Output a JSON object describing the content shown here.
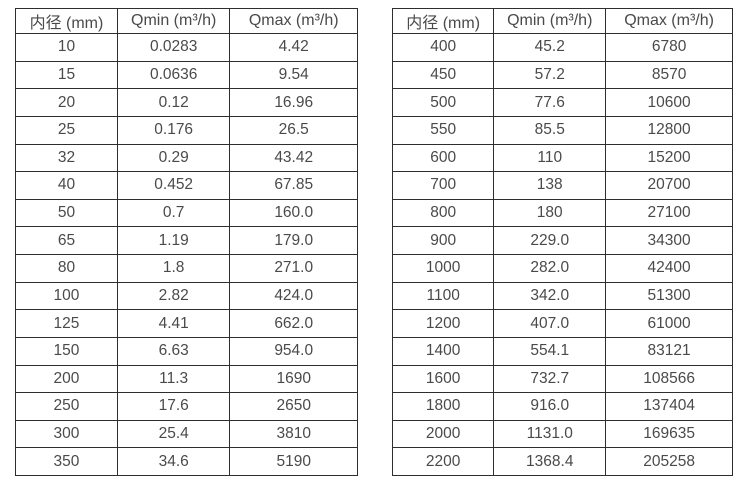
{
  "page": {
    "background": "#ffffff",
    "text_color": "#4a4a4a",
    "border_color": "#2e2e2e"
  },
  "tables": [
    {
      "name": "small-diameters",
      "headers": [
        "内径 (mm)",
        "Qmin (m³/h)",
        "Qmax (m³/h)"
      ],
      "rows": [
        [
          "10",
          "0.0283",
          "4.42"
        ],
        [
          "15",
          "0.0636",
          "9.54"
        ],
        [
          "20",
          "0.12",
          "16.96"
        ],
        [
          "25",
          "0.176",
          "26.5"
        ],
        [
          "32",
          "0.29",
          "43.42"
        ],
        [
          "40",
          "0.452",
          "67.85"
        ],
        [
          "50",
          "0.7",
          "160.0"
        ],
        [
          "65",
          "1.19",
          "179.0"
        ],
        [
          "80",
          "1.8",
          "271.0"
        ],
        [
          "100",
          "2.82",
          "424.0"
        ],
        [
          "125",
          "4.41",
          "662.0"
        ],
        [
          "150",
          "6.63",
          "954.0"
        ],
        [
          "200",
          "11.3",
          "1690"
        ],
        [
          "250",
          "17.6",
          "2650"
        ],
        [
          "300",
          "25.4",
          "3810"
        ],
        [
          "350",
          "34.6",
          "5190"
        ]
      ]
    },
    {
      "name": "large-diameters",
      "headers": [
        "内径 (mm)",
        "Qmin (m³/h)",
        "Qmax (m³/h)"
      ],
      "rows": [
        [
          "400",
          "45.2",
          "6780"
        ],
        [
          "450",
          "57.2",
          "8570"
        ],
        [
          "500",
          "77.6",
          "10600"
        ],
        [
          "550",
          "85.5",
          "12800"
        ],
        [
          "600",
          "110",
          "15200"
        ],
        [
          "700",
          "138",
          "20700"
        ],
        [
          "800",
          "180",
          "27100"
        ],
        [
          "900",
          "229.0",
          "34300"
        ],
        [
          "1000",
          "282.0",
          "42400"
        ],
        [
          "1100",
          "342.0",
          "51300"
        ],
        [
          "1200",
          "407.0",
          "61000"
        ],
        [
          "1400",
          "554.1",
          "83121"
        ],
        [
          "1600",
          "732.7",
          "108566"
        ],
        [
          "1800",
          "916.0",
          "137404"
        ],
        [
          "2000",
          "1131.0",
          "169635"
        ],
        [
          "2200",
          "1368.4",
          "205258"
        ]
      ]
    }
  ],
  "chart_data": {
    "type": "table",
    "title": "",
    "tables": [
      {
        "columns": [
          "内径 (mm)",
          "Qmin (m³/h)",
          "Qmax (m³/h)"
        ],
        "diameter_mm": [
          10,
          15,
          20,
          25,
          32,
          40,
          50,
          65,
          80,
          100,
          125,
          150,
          200,
          250,
          300,
          350
        ],
        "qmin_m3h": [
          0.0283,
          0.0636,
          0.12,
          0.176,
          0.29,
          0.452,
          0.7,
          1.19,
          1.8,
          2.82,
          4.41,
          6.63,
          11.3,
          17.6,
          25.4,
          34.6
        ],
        "qmax_m3h": [
          4.42,
          9.54,
          16.96,
          26.5,
          43.42,
          67.85,
          160.0,
          179.0,
          271.0,
          424.0,
          662.0,
          954.0,
          1690,
          2650,
          3810,
          5190
        ]
      },
      {
        "columns": [
          "内径 (mm)",
          "Qmin (m³/h)",
          "Qmax (m³/h)"
        ],
        "diameter_mm": [
          400,
          450,
          500,
          550,
          600,
          700,
          800,
          900,
          1000,
          1100,
          1200,
          1400,
          1600,
          1800,
          2000,
          2200
        ],
        "qmin_m3h": [
          45.2,
          57.2,
          77.6,
          85.5,
          110,
          138,
          180,
          229.0,
          282.0,
          342.0,
          407.0,
          554.1,
          732.7,
          916.0,
          1131.0,
          1368.4
        ],
        "qmax_m3h": [
          6780,
          8570,
          10600,
          12800,
          15200,
          20700,
          27100,
          34300,
          42400,
          51300,
          61000,
          83121,
          108566,
          137404,
          169635,
          205258
        ]
      }
    ]
  }
}
